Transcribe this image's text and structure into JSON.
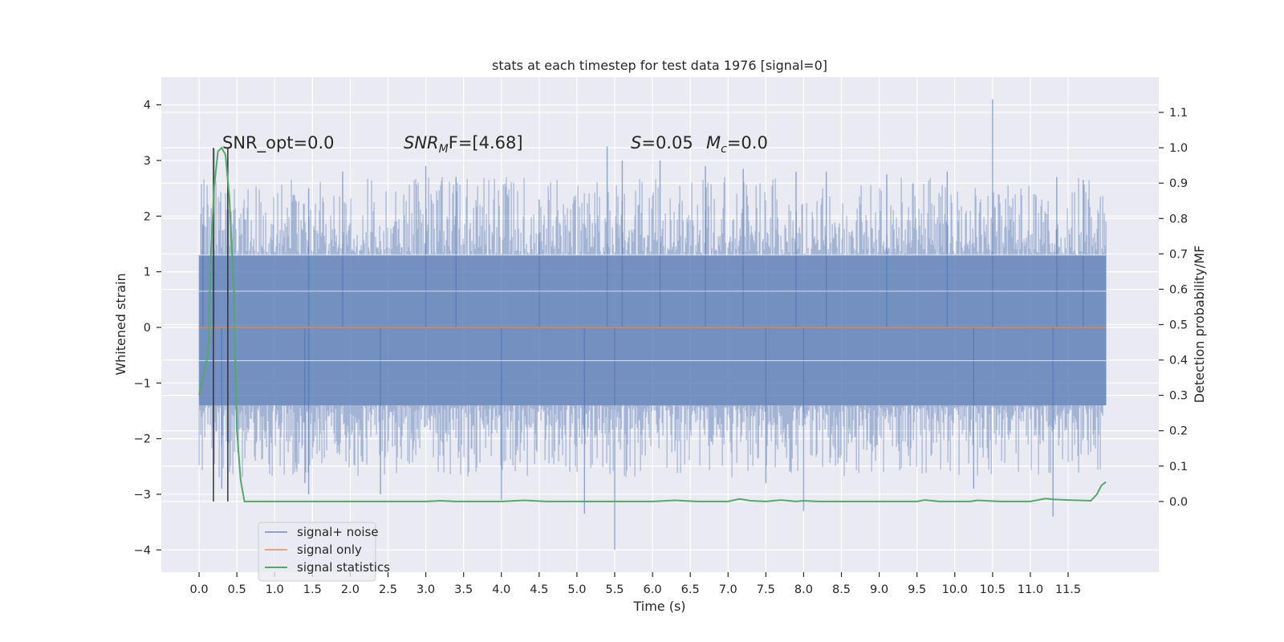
{
  "chart_data": {
    "type": "line",
    "title": "stats at each timestep for test data 1976 [signal=0]",
    "xlabel": "Time (s)",
    "ylabel": "Whitened strain",
    "y2label": "Detection probability/MF",
    "xlim": [
      -0.5,
      12.7
    ],
    "ylim": [
      -4.4,
      4.5
    ],
    "y2lim": [
      -0.2,
      1.2
    ],
    "x_ticks": [
      "0.0",
      "0.5",
      "1.0",
      "1.5",
      "2.0",
      "2.5",
      "3.0",
      "3.5",
      "4.0",
      "4.5",
      "5.0",
      "5.5",
      "6.0",
      "6.5",
      "7.0",
      "7.5",
      "8.0",
      "8.5",
      "9.0",
      "9.5",
      "10.0",
      "10.5",
      "11.0",
      "11.5"
    ],
    "y_ticks": [
      -4,
      -3,
      -2,
      -1,
      0,
      1,
      2,
      3,
      4
    ],
    "y_tick_labels": [
      "−4",
      "−3",
      "−2",
      "−1",
      "0",
      "1",
      "2",
      "3",
      "4"
    ],
    "y2_ticks": [
      "0.0",
      "0.1",
      "0.2",
      "0.3",
      "0.4",
      "0.5",
      "0.6",
      "0.7",
      "0.8",
      "0.9",
      "1.0",
      "1.1"
    ],
    "grid": true,
    "legend_position": "lower-left",
    "annotations": {
      "snr_opt": "SNR_opt=0.0",
      "snr_mf_main": "SNR",
      "snr_mf_sub": "M",
      "snr_mf_rest": "F=[4.68]",
      "s_main": "S",
      "s_rest": "=0.05",
      "mc_main": "M",
      "mc_sub": "c",
      "mc_rest": "=0.0"
    },
    "vertical_lines_x": [
      0.19,
      0.38
    ],
    "series": [
      {
        "name": "signal+ noise",
        "color": "#4c72b0",
        "opacity": 0.5,
        "x_range": [
          0.0,
          12.0
        ],
        "envelope_dense": [
          -1.4,
          1.3
        ],
        "typical_range": [
          -2.0,
          2.0
        ],
        "spikes": [
          {
            "x": 0.05,
            "y": 1.85
          },
          {
            "x": 0.2,
            "y": 3.2
          },
          {
            "x": 0.38,
            "y": 3.05
          },
          {
            "x": 0.3,
            "y": -2.9
          },
          {
            "x": 1.4,
            "y": -2.8
          },
          {
            "x": 1.45,
            "y": 2.5
          },
          {
            "x": 1.45,
            "y": -3.0
          },
          {
            "x": 1.9,
            "y": 2.8
          },
          {
            "x": 2.4,
            "y": -3.0
          },
          {
            "x": 3.0,
            "y": 2.9
          },
          {
            "x": 3.4,
            "y": 2.7
          },
          {
            "x": 4.0,
            "y": -3.1
          },
          {
            "x": 4.5,
            "y": 2.3
          },
          {
            "x": 5.1,
            "y": -3.35
          },
          {
            "x": 5.4,
            "y": 3.25
          },
          {
            "x": 5.5,
            "y": -4.0
          },
          {
            "x": 5.6,
            "y": 3.0
          },
          {
            "x": 6.1,
            "y": 3.0
          },
          {
            "x": 6.7,
            "y": 2.9
          },
          {
            "x": 7.2,
            "y": 2.85
          },
          {
            "x": 7.5,
            "y": -2.8
          },
          {
            "x": 7.9,
            "y": 2.8
          },
          {
            "x": 8.0,
            "y": -3.3
          },
          {
            "x": 8.3,
            "y": 2.8
          },
          {
            "x": 9.1,
            "y": 2.75
          },
          {
            "x": 9.9,
            "y": 2.8
          },
          {
            "x": 10.5,
            "y": 4.1
          },
          {
            "x": 10.25,
            "y": -2.9
          },
          {
            "x": 11.3,
            "y": -3.4
          },
          {
            "x": 11.35,
            "y": 2.7
          },
          {
            "x": 11.7,
            "y": 2.65
          }
        ]
      },
      {
        "name": "signal only",
        "color": "#dd8452",
        "x_range": [
          0.0,
          12.0
        ],
        "value": 0.0
      },
      {
        "name": "signal statistics",
        "color": "#55a868",
        "axis": "right",
        "x": [
          0.0,
          0.12,
          0.16,
          0.2,
          0.25,
          0.3,
          0.35,
          0.4,
          0.46,
          0.5,
          0.55,
          0.6,
          0.7,
          1.0,
          2.0,
          3.0,
          3.2,
          3.4,
          4.0,
          4.3,
          4.6,
          5.0,
          6.0,
          6.3,
          6.6,
          7.0,
          7.15,
          7.3,
          7.5,
          7.7,
          7.9,
          8.0,
          8.2,
          9.0,
          9.5,
          9.6,
          9.8,
          10.2,
          10.3,
          10.6,
          11.0,
          11.2,
          11.3,
          11.5,
          11.8,
          11.88,
          11.94,
          12.0
        ],
        "values": [
          0.3,
          0.42,
          0.72,
          0.89,
          0.99,
          1.0,
          0.98,
          0.86,
          0.6,
          0.2,
          0.06,
          0.0,
          0.0,
          0.0,
          0.0,
          0.0,
          0.002,
          0.0,
          0.0,
          0.003,
          0.0,
          0.0,
          0.0,
          0.003,
          0.0,
          0.0,
          0.007,
          0.002,
          0.0,
          0.004,
          0.0,
          0.002,
          0.0,
          0.0,
          0.0,
          0.004,
          0.0,
          0.0,
          0.003,
          0.0,
          0.0,
          0.008,
          0.006,
          0.004,
          0.002,
          0.02,
          0.045,
          0.055
        ]
      }
    ]
  }
}
